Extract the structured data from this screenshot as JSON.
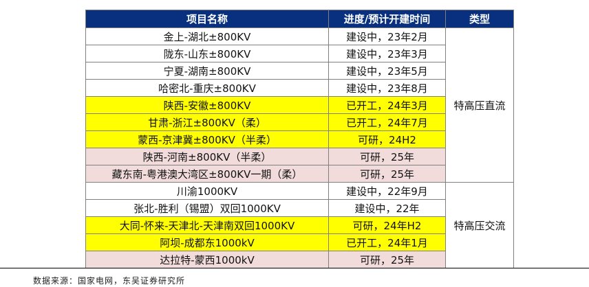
{
  "table": {
    "headers": [
      "项目名称",
      "进度/预计开建时间",
      "类型"
    ],
    "groups": [
      {
        "type": "特高压直流",
        "rows": [
          {
            "name": "金上-湖北±800KV",
            "progress": "建设中，23年2月",
            "color": "white"
          },
          {
            "name": "陇东-山东±800KV",
            "progress": "建设中，23年3月",
            "color": "white"
          },
          {
            "name": "宁夏-湖南±800KV",
            "progress": "建设中，23年5月",
            "color": "white"
          },
          {
            "name": "哈密北-重庆±800KV",
            "progress": "建设中，23年8月",
            "color": "white"
          },
          {
            "name": "陕西-安徽±800KV",
            "progress": "已开工，24年3月",
            "color": "yellow"
          },
          {
            "name": "甘肃-浙江±800KV（柔）",
            "progress": "已开工，24年7月",
            "color": "yellow"
          },
          {
            "name": "蒙西-京津冀±800KV（半柔）",
            "progress": "可研，24H2",
            "color": "yellow"
          },
          {
            "name": "陕西-河南±800KV（半柔）",
            "progress": "可研，25年",
            "color": "pink"
          },
          {
            "name": "藏东南-粤港澳大湾区±800KV一期（柔）",
            "progress": "可研，25年",
            "color": "pink"
          }
        ]
      },
      {
        "type": "特高压交流",
        "rows": [
          {
            "name": "川渝1000KV",
            "progress": "建设中，22年9月",
            "color": "white"
          },
          {
            "name": "张北-胜利（锡盟）双回1000KV",
            "progress": "建设中，22年",
            "color": "white"
          },
          {
            "name": "大同-怀来-天津北-天津南双回1000KV",
            "progress": "可研，24年H2",
            "color": "yellow"
          },
          {
            "name": "阿坝-成都东1000kV",
            "progress": "已开工，24年1月",
            "color": "yellow"
          },
          {
            "name": "达拉特-蒙西1000kV",
            "progress": "可研，25年",
            "color": "pink"
          }
        ]
      }
    ]
  },
  "footer": {
    "source": "数据来源：国家电网，东吴证券研究所"
  }
}
